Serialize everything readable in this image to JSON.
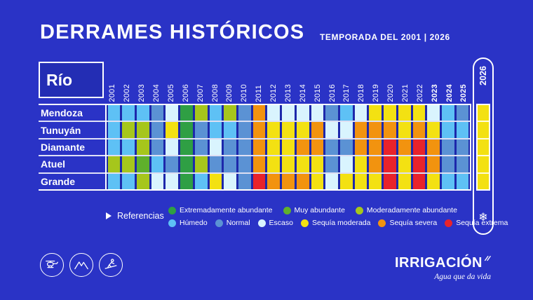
{
  "header": {
    "title": "DERRAMES HISTÓRICOS",
    "subtitle": "TEMPORADA DEL 2001 | 2026"
  },
  "table": {
    "row_header": "Río",
    "bold_years": [
      "2023",
      "2024",
      "2025"
    ],
    "highlight_year": "2026"
  },
  "chart_data": {
    "type": "heatmap",
    "title": "DERRAMES HISTÓRICOS",
    "subtitle": "TEMPORADA DEL 2001 | 2026",
    "x": [
      "2001",
      "2002",
      "2003",
      "2004",
      "2005",
      "2006",
      "2007",
      "2008",
      "2009",
      "2010",
      "2011",
      "2012",
      "2013",
      "2014",
      "2015",
      "2016",
      "2017",
      "2018",
      "2019",
      "2020",
      "2021",
      "2022",
      "2023",
      "2024",
      "2025",
      "2026"
    ],
    "y": [
      "Mendoza",
      "Tunuyán",
      "Diamante",
      "Atuel",
      "Grande"
    ],
    "categories": {
      "EX": {
        "label": "Extremadamente abundante",
        "color": "#2f9f44"
      },
      "MA": {
        "label": "Muy abundante",
        "color": "#5fb02c"
      },
      "MO": {
        "label": "Moderadamente abundante",
        "color": "#a6c61c"
      },
      "HU": {
        "label": "Húmedo",
        "color": "#5ec1f5"
      },
      "NO": {
        "label": "Normal",
        "color": "#5b92d4"
      },
      "ES": {
        "label": "Escaso",
        "color": "#d9f4fe"
      },
      "SM": {
        "label": "Sequía moderada",
        "color": "#f3e112"
      },
      "SS": {
        "label": "Sequía severa",
        "color": "#f2930f"
      },
      "SE": {
        "label": "Sequía extrema",
        "color": "#e8232b"
      }
    },
    "grid": [
      [
        "HU",
        "HU",
        "HU",
        "NO",
        "ES",
        "EX",
        "MO",
        "HU",
        "MO",
        "NO",
        "SS",
        "ES",
        "ES",
        "ES",
        "ES",
        "NO",
        "HU",
        "ES",
        "SM",
        "SM",
        "SM",
        "SM",
        "ES",
        "HU",
        "NO",
        "SM"
      ],
      [
        "HU",
        "MO",
        "MO",
        "NO",
        "SM",
        "EX",
        "NO",
        "HU",
        "HU",
        "NO",
        "SS",
        "SM",
        "SM",
        "SM",
        "SS",
        "ES",
        "ES",
        "SS",
        "SS",
        "SS",
        "SM",
        "SS",
        "SM",
        "HU",
        "HU",
        "SM"
      ],
      [
        "HU",
        "HU",
        "MO",
        "NO",
        "ES",
        "EX",
        "NO",
        "ES",
        "NO",
        "NO",
        "SS",
        "SM",
        "SM",
        "SS",
        "SS",
        "NO",
        "NO",
        "SS",
        "SS",
        "SE",
        "SS",
        "SE",
        "SS",
        "NO",
        "NO",
        "SM"
      ],
      [
        "MO",
        "MO",
        "MA",
        "HU",
        "NO",
        "EX",
        "MO",
        "NO",
        "NO",
        "NO",
        "SS",
        "SM",
        "SM",
        "SM",
        "SM",
        "NO",
        "ES",
        "SM",
        "SS",
        "SE",
        "SM",
        "SE",
        "SS",
        "NO",
        "NO",
        "SM"
      ],
      [
        "HU",
        "HU",
        "MO",
        "ES",
        "ES",
        "EX",
        "HU",
        "SM",
        "ES",
        "NO",
        "SE",
        "SS",
        "SS",
        "SS",
        "SM",
        "ES",
        "SM",
        "SM",
        "SM",
        "SE",
        "SM",
        "SE",
        "SM",
        "HU",
        "HU",
        "SM"
      ]
    ]
  },
  "legend": {
    "title": "Referencias",
    "order": [
      "EX",
      "MA",
      "MO",
      "HU",
      "NO",
      "ES",
      "SM",
      "SS",
      "SE"
    ],
    "row_break": 3
  },
  "footer": {
    "brand": "IRRIGACIÓN",
    "tagline": "Agua que da vida",
    "icons": [
      "helicopter",
      "mountains",
      "skier"
    ],
    "snowflake": "❄"
  },
  "palette": {
    "background": "#2a33c6",
    "grid_gap_blue": "#1d28ab",
    "frame": "#ffffff"
  }
}
